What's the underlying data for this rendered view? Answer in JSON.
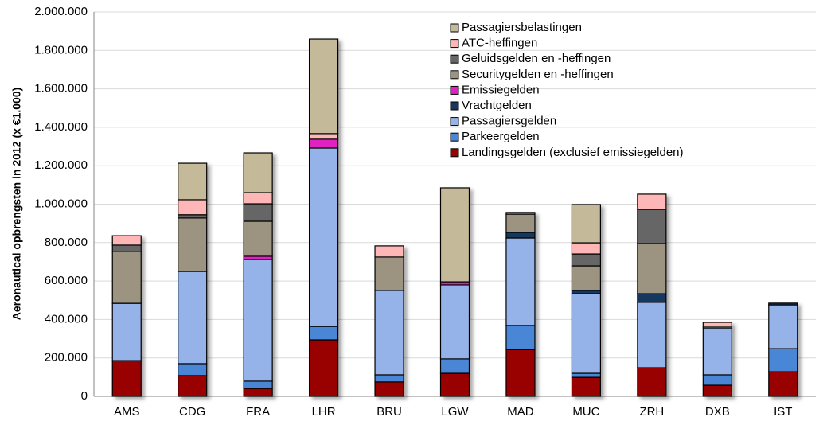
{
  "chart_data": {
    "type": "stacked-bar",
    "y_label": "Aeronautical opbrengsten in 2012 (x €1.000)",
    "categories": [
      "AMS",
      "CDG",
      "FRA",
      "LHR",
      "BRU",
      "LGW",
      "MAD",
      "MUC",
      "ZRH",
      "DXB",
      "IST"
    ],
    "series": [
      {
        "name": "Landingsgelden (exclusief emissiegelden)",
        "color": "#990000",
        "values": [
          186000,
          108000,
          41000,
          294000,
          75000,
          120000,
          244000,
          99000,
          149000,
          58000,
          128000
        ]
      },
      {
        "name": "Parkeergelden",
        "color": "#4a86d6",
        "values": [
          0,
          62000,
          38000,
          70000,
          37000,
          75000,
          125000,
          21000,
          0,
          54000,
          120000
        ]
      },
      {
        "name": "Passagiersgelden",
        "color": "#95b3e8",
        "values": [
          298000,
          480000,
          633000,
          928000,
          439000,
          385000,
          455000,
          414000,
          340000,
          244000,
          228000
        ]
      },
      {
        "name": "Vrachtgelden",
        "color": "#17375e",
        "values": [
          0,
          0,
          0,
          0,
          0,
          0,
          29000,
          17000,
          45000,
          0,
          9000
        ]
      },
      {
        "name": "Emissiegelden",
        "color": "#e020c0",
        "values": [
          0,
          0,
          17000,
          46000,
          0,
          16000,
          0,
          0,
          0,
          0,
          0
        ]
      },
      {
        "name": "Securitygelden en -heffingen",
        "color": "#9c9480",
        "values": [
          270000,
          278000,
          182000,
          0,
          174000,
          0,
          95000,
          128000,
          261000,
          9000,
          0
        ]
      },
      {
        "name": "Geluidsgelden en -heffingen",
        "color": "#666666",
        "values": [
          33000,
          17000,
          91000,
          0,
          0,
          0,
          0,
          62000,
          178000,
          0,
          0
        ]
      },
      {
        "name": "ATC-heffingen",
        "color": "#ffb6b6",
        "values": [
          49000,
          78000,
          58000,
          29000,
          58000,
          0,
          0,
          58000,
          79000,
          20000,
          0
        ]
      },
      {
        "name": "Passagiersbelastingen",
        "color": "#c4b998",
        "values": [
          0,
          190000,
          207000,
          492000,
          0,
          489000,
          9000,
          199000,
          0,
          0,
          0
        ]
      }
    ],
    "ylim": [
      0,
      2000000
    ],
    "yticks": [
      0,
      {
        "value": 200000,
        "label": "200.000"
      },
      {
        "value": 400000,
        "label": "400.000"
      },
      {
        "value": 600000,
        "label": "600.000"
      },
      {
        "value": 800000,
        "label": "800.000"
      },
      {
        "value": 1000000,
        "label": "1.000.000"
      },
      {
        "value": 1200000,
        "label": "1.200.000"
      },
      {
        "value": 1400000,
        "label": "1.400.000"
      },
      {
        "value": 1600000,
        "label": "1.600.000"
      },
      {
        "value": 1800000,
        "label": "1.800.000"
      },
      {
        "value": 2000000,
        "label": "2.000.000"
      }
    ],
    "grid": true,
    "legend": "top-right"
  }
}
